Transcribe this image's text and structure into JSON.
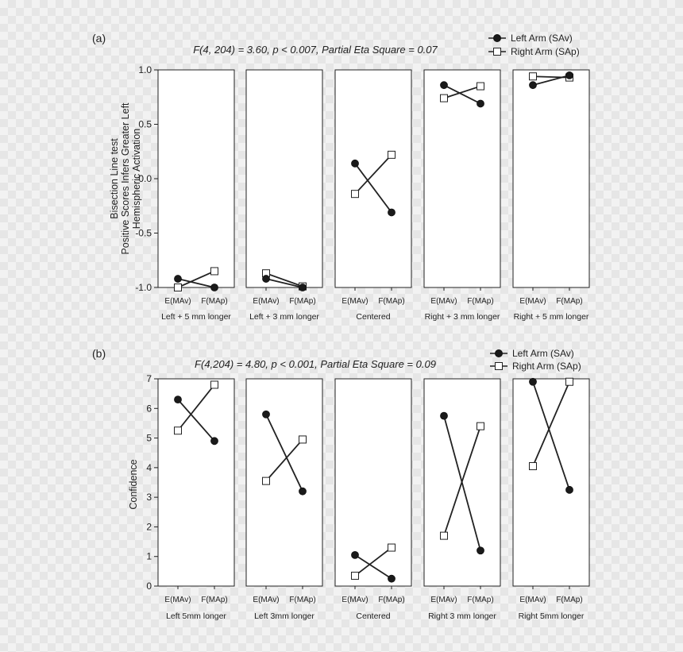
{
  "colors": {
    "series_left": "#1a1a1a",
    "series_right": "#ffffff",
    "axis": "#222222"
  },
  "chart_data": [
    {
      "type": "line",
      "panel_label": "(a)",
      "title": "F(4, 204) = 3.60, p < 0.007, Partial Eta Square = 0.07",
      "ylabel": [
        "Bisection Line test",
        "Positive Scores Infers Greater Left",
        "Hemispheric Activation"
      ],
      "ylim": [
        -1.0,
        1.0
      ],
      "yticks": [
        1.0,
        0.5,
        0.0,
        -0.5,
        -1.0
      ],
      "ytick_labels": [
        "1.0",
        "0.5",
        "0.0",
        "-0.5",
        "-1.0"
      ],
      "x": [
        "E(MAv)",
        "F(MAp)"
      ],
      "legend": [
        "Left Arm (SAv)",
        "Right Arm (SAp)"
      ],
      "legend_position": "top-right",
      "grid": false,
      "groups": [
        {
          "label": "Left + 5 mm longer",
          "left": [
            -0.92,
            -1.0
          ],
          "right": [
            -1.0,
            -0.85
          ]
        },
        {
          "label": "Left + 3 mm longer",
          "left": [
            -0.92,
            -1.0
          ],
          "right": [
            -0.87,
            -0.99
          ]
        },
        {
          "label": "Centered",
          "left": [
            0.14,
            -0.31
          ],
          "right": [
            -0.14,
            0.22
          ]
        },
        {
          "label": "Right + 3 mm longer",
          "left": [
            0.86,
            0.69
          ],
          "right": [
            0.74,
            0.85
          ]
        },
        {
          "label": "Right + 5 mm longer",
          "left": [
            0.86,
            0.95
          ],
          "right": [
            0.94,
            0.93
          ]
        }
      ]
    },
    {
      "type": "line",
      "panel_label": "(b)",
      "title": "F(4,204) = 4.80, p < 0.001, Partial Eta Square = 0.09",
      "ylabel": [
        "Confidence"
      ],
      "ylim": [
        0,
        7
      ],
      "yticks": [
        7,
        6,
        5,
        4,
        3,
        2,
        1,
        0
      ],
      "ytick_labels": [
        "7",
        "6",
        "5",
        "4",
        "3",
        "2",
        "1",
        "0"
      ],
      "x": [
        "E(MAv)",
        "F(MAp)"
      ],
      "legend": [
        "Left Arm (SAv)",
        "Right Arm (SAp)"
      ],
      "legend_position": "top-right",
      "grid": false,
      "groups": [
        {
          "label": "Left 5mm longer",
          "left": [
            6.3,
            4.9
          ],
          "right": [
            5.25,
            6.8
          ]
        },
        {
          "label": "Left 3mm longer",
          "left": [
            5.8,
            3.2
          ],
          "right": [
            3.55,
            4.95
          ]
        },
        {
          "label": "Centered",
          "left": [
            1.05,
            0.25
          ],
          "right": [
            0.35,
            1.3
          ]
        },
        {
          "label": "Right 3 mm longer",
          "left": [
            5.75,
            1.2
          ],
          "right": [
            1.7,
            5.4
          ]
        },
        {
          "label": "Right 5mm longer",
          "left": [
            6.9,
            3.25
          ],
          "right": [
            4.05,
            6.9
          ]
        }
      ]
    }
  ]
}
